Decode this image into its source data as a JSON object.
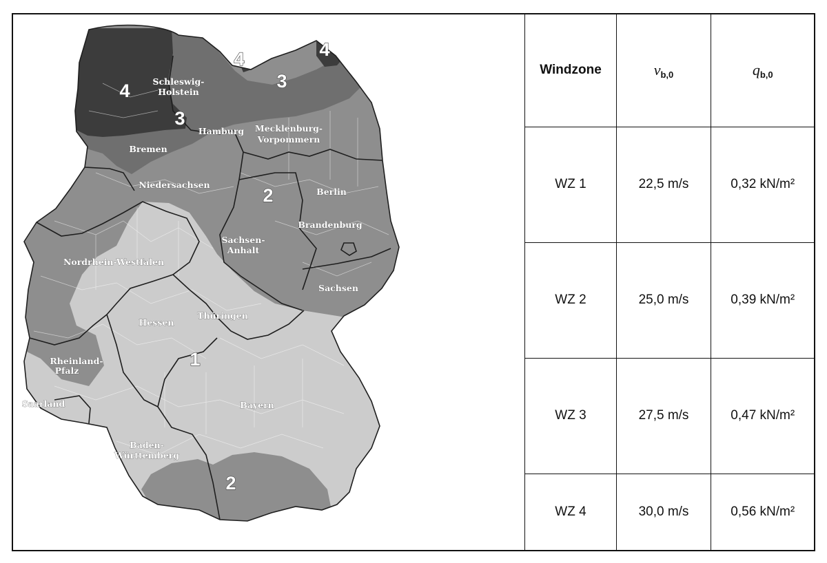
{
  "map": {
    "zone_labels": [
      "1",
      "2",
      "2",
      "3",
      "3",
      "4",
      "4",
      "4"
    ],
    "regions": {
      "schleswig_holstein": [
        "Schleswig-",
        "Holstein"
      ],
      "hamburg": "Hamburg",
      "mecklenburg_vorpommern": [
        "Mecklenburg-",
        "Vorpommern"
      ],
      "bremen": "Bremen",
      "niedersachsen": "Niedersachsen",
      "berlin": "Berlin",
      "brandenburg": "Brandenburg",
      "sachsen_anhalt": [
        "Sachsen-",
        "Anhalt"
      ],
      "nordrhein_westfalen": "Nordrhein-Westfalen",
      "sachsen": "Sachsen",
      "hessen": "Hessen",
      "thueringen": "Thüringen",
      "rheinland_pfalz": [
        "Rheinland-",
        "Pfalz"
      ],
      "saarland": "Saarland",
      "bayern": "Bayern",
      "baden_wuerttemberg": [
        "Baden-",
        "Württemberg"
      ]
    },
    "zone_colors": {
      "1": "#cccccc",
      "2": "#8e8e8e",
      "3": "#6f6f6f",
      "4": "#3c3c3c"
    }
  },
  "table": {
    "header": {
      "col1": "Windzone",
      "v_symbol": "v",
      "v_sub": "b,0",
      "q_symbol": "q",
      "q_sub": "b,0"
    },
    "rows": [
      {
        "zone": "WZ 1",
        "v": "22,5 m/s",
        "q": "0,32 kN/m²"
      },
      {
        "zone": "WZ 2",
        "v": "25,0 m/s",
        "q": "0,39 kN/m²"
      },
      {
        "zone": "WZ 3",
        "v": "27,5 m/s",
        "q": "0,47 kN/m²"
      },
      {
        "zone": "WZ 4",
        "v": "30,0 m/s",
        "q": "0,56 kN/m²"
      }
    ]
  }
}
